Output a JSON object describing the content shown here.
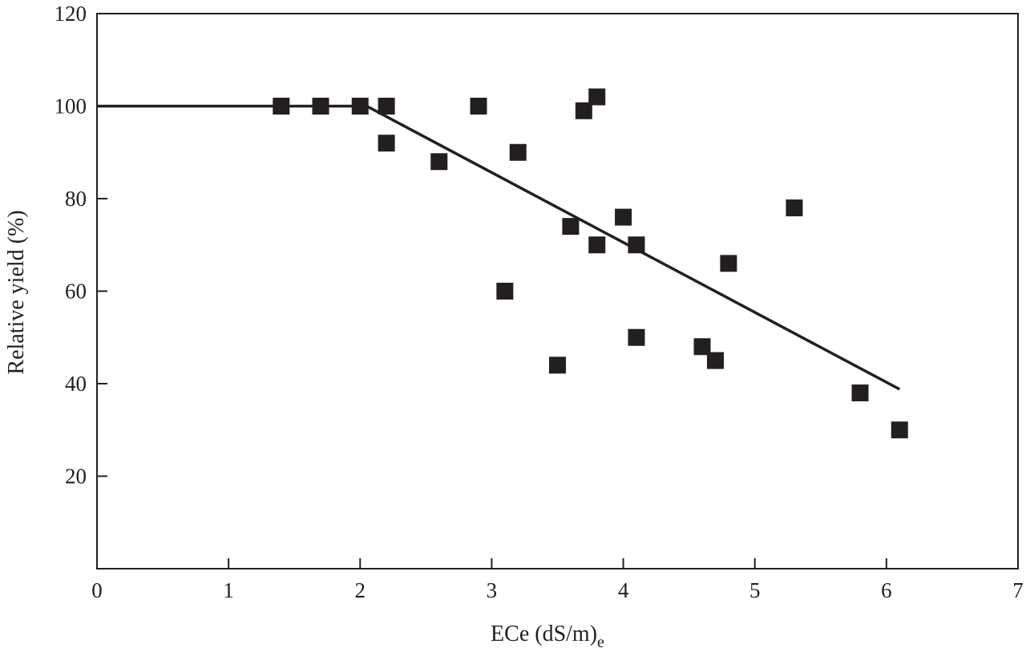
{
  "chart_data": {
    "type": "scatter",
    "xlabel": "ECe (dS/m)",
    "xlabel_subscript": "e",
    "ylabel": "Relative yield (%)",
    "xlim": [
      0,
      7
    ],
    "ylim": [
      0,
      120
    ],
    "x_ticks": [
      "0",
      "1",
      "2",
      "3",
      "4",
      "5",
      "6",
      "7"
    ],
    "y_ticks": [
      "20",
      "40",
      "60",
      "80",
      "100",
      "120"
    ],
    "grid": false,
    "marker_color": "#231f20",
    "points": [
      {
        "x": 1.4,
        "y": 100
      },
      {
        "x": 1.7,
        "y": 100
      },
      {
        "x": 2.0,
        "y": 100
      },
      {
        "x": 2.2,
        "y": 100
      },
      {
        "x": 2.2,
        "y": 92
      },
      {
        "x": 2.6,
        "y": 88
      },
      {
        "x": 2.9,
        "y": 100
      },
      {
        "x": 3.1,
        "y": 60
      },
      {
        "x": 3.2,
        "y": 90
      },
      {
        "x": 3.5,
        "y": 44
      },
      {
        "x": 3.6,
        "y": 74
      },
      {
        "x": 3.7,
        "y": 99
      },
      {
        "x": 3.8,
        "y": 102
      },
      {
        "x": 3.8,
        "y": 70
      },
      {
        "x": 4.0,
        "y": 76
      },
      {
        "x": 4.1,
        "y": 70
      },
      {
        "x": 4.1,
        "y": 50
      },
      {
        "x": 4.6,
        "y": 48
      },
      {
        "x": 4.7,
        "y": 45
      },
      {
        "x": 4.8,
        "y": 66
      },
      {
        "x": 5.3,
        "y": 78
      },
      {
        "x": 5.8,
        "y": 38
      },
      {
        "x": 6.1,
        "y": 30
      }
    ],
    "fit_line": [
      {
        "x": 0,
        "y": 100
      },
      {
        "x": 2.05,
        "y": 100
      },
      {
        "x": 6.1,
        "y": 38.8
      }
    ]
  }
}
